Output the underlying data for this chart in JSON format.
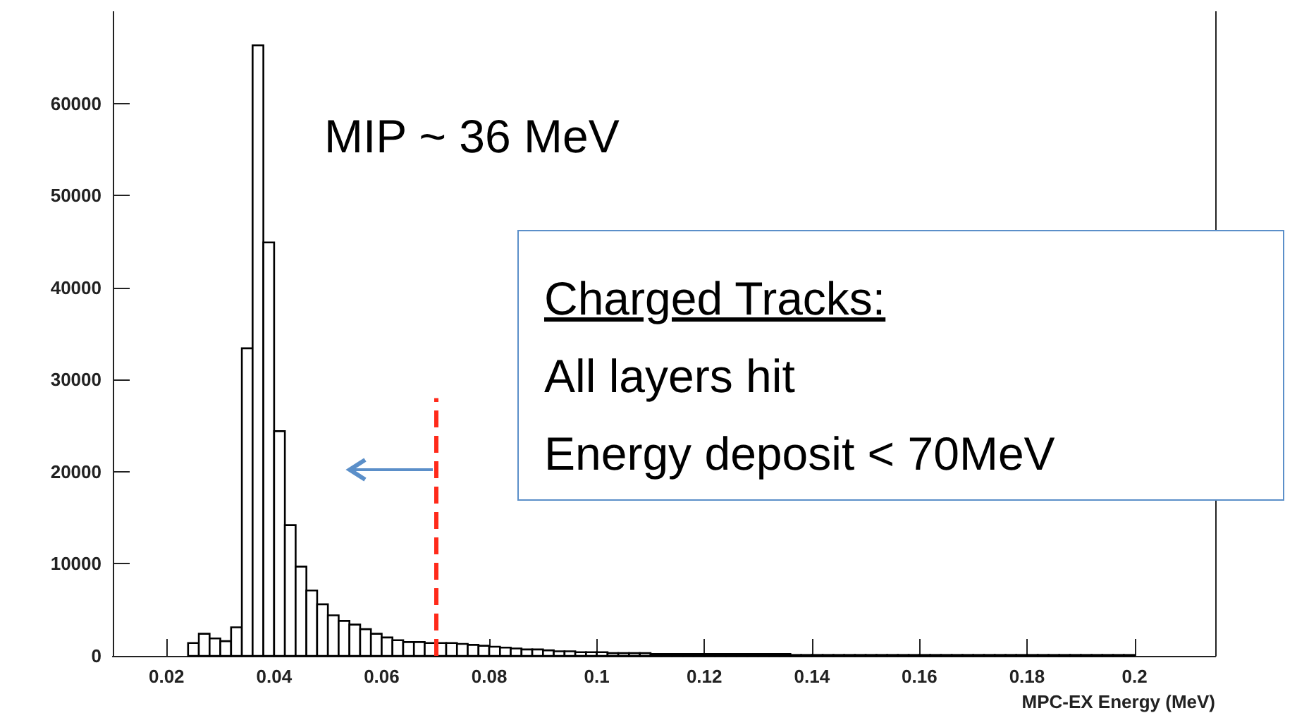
{
  "chart_data": {
    "type": "histogram",
    "xlabel": "MPC-EX Energy (MeV)",
    "color": "#000000",
    "bins": [
      0.024,
      0.026,
      0.028,
      0.03,
      0.032,
      0.034,
      0.036,
      0.038,
      0.04,
      0.042,
      0.044,
      0.046,
      0.048,
      0.05,
      0.052,
      0.054,
      0.056,
      0.058,
      0.06,
      0.062,
      0.064,
      0.066,
      0.068,
      0.07,
      0.072,
      0.074,
      0.076,
      0.078,
      0.08,
      0.082,
      0.084,
      0.086,
      0.088,
      0.09,
      0.092,
      0.094,
      0.096,
      0.098,
      0.1,
      0.102,
      0.104,
      0.106,
      0.108,
      0.11,
      0.112,
      0.114,
      0.116,
      0.118,
      0.12,
      0.122,
      0.124,
      0.126,
      0.128,
      0.13,
      0.132,
      0.134,
      0.136,
      0.138,
      0.14,
      0.142,
      0.144,
      0.146,
      0.148,
      0.15,
      0.152,
      0.154,
      0.156,
      0.158,
      0.16,
      0.162,
      0.164,
      0.166,
      0.168,
      0.17,
      0.172,
      0.174,
      0.176,
      0.178,
      0.18,
      0.182,
      0.184,
      0.186,
      0.188,
      0.19,
      0.192,
      0.194,
      0.196,
      0.198,
      0.2
    ],
    "values": [
      1400,
      2400,
      1900,
      1600,
      3100,
      33400,
      66300,
      44900,
      24400,
      14200,
      9700,
      7100,
      5600,
      4400,
      3800,
      3400,
      2900,
      2400,
      2000,
      1700,
      1500,
      1500,
      1400,
      1400,
      1400,
      1300,
      1200,
      1100,
      1000,
      900,
      800,
      700,
      700,
      600,
      500,
      500,
      400,
      400,
      400,
      300,
      300,
      300,
      300,
      200,
      200,
      200,
      200,
      200,
      200,
      200,
      200,
      200,
      200,
      200,
      200,
      200,
      100,
      100,
      100,
      100,
      100,
      100,
      100,
      100,
      100,
      100,
      100,
      100,
      100,
      100,
      100,
      100,
      100,
      100,
      100,
      100,
      100,
      100,
      100,
      100,
      100,
      100,
      100,
      100,
      100,
      100,
      100,
      100
    ],
    "xlim": [
      0.01,
      0.215
    ],
    "xticks": [
      0.02,
      0.04,
      0.06,
      0.08,
      0.1,
      0.12,
      0.14,
      0.16,
      0.18,
      0.2
    ],
    "ylim": [
      0,
      70000
    ],
    "yticks": [
      0,
      10000,
      20000,
      30000,
      40000,
      50000,
      60000
    ],
    "ref_lines": [
      {
        "axis": "x",
        "value": 0.07,
        "color": "#ff2a1a",
        "line_style": "dashed"
      }
    ],
    "annotations": [
      "MIP ~ 36 MeV",
      "Charged Tracks:",
      "All layers hit",
      "Energy deposit < 70MeV"
    ],
    "grid": false
  }
}
